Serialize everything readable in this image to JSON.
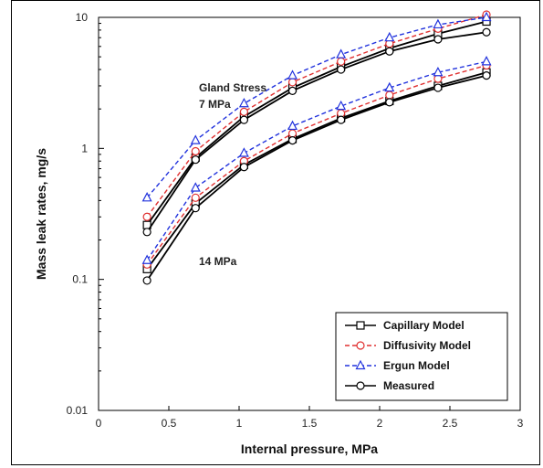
{
  "chart_data": {
    "type": "line",
    "xlabel": "Internal pressure, MPa",
    "ylabel": "Mass leak rates, mg/s",
    "xlim": [
      0,
      3
    ],
    "ylim": [
      0.01,
      10
    ],
    "yscale": "log",
    "xticks": [
      "0",
      "0.5",
      "1",
      "1.5",
      "2",
      "2.5",
      "3"
    ],
    "yticks": [
      "0.01",
      "0.1",
      "1",
      "10"
    ],
    "grid": false,
    "legend_position": "bottom-right",
    "annotations": [
      {
        "text": "Gland Stress",
        "group": "7"
      },
      {
        "text": "7 MPa",
        "group": "7"
      },
      {
        "text": "14 MPa",
        "group": "14"
      }
    ],
    "x": [
      0.345,
      0.69,
      1.035,
      1.38,
      1.725,
      2.07,
      2.415,
      2.76
    ],
    "series": [
      {
        "name": "Capillary Model",
        "group": "7",
        "color": "#000000",
        "dash": "solid",
        "marker": "square",
        "values": [
          0.26,
          0.85,
          1.75,
          2.9,
          4.2,
          5.8,
          7.5,
          9.3
        ]
      },
      {
        "name": "Diffusivity Model",
        "group": "7",
        "color": "#e03030",
        "dash": "dash",
        "marker": "circle",
        "values": [
          0.3,
          0.95,
          1.9,
          3.2,
          4.6,
          6.3,
          8.2,
          10.5
        ]
      },
      {
        "name": "Ergun Model",
        "group": "7",
        "color": "#2233dd",
        "dash": "dash",
        "marker": "triangle",
        "values": [
          0.42,
          1.15,
          2.2,
          3.6,
          5.2,
          7.0,
          8.8,
          10.0
        ]
      },
      {
        "name": "Measured",
        "group": "7",
        "color": "#000000",
        "dash": "solid",
        "marker": "circle",
        "values": [
          0.23,
          0.82,
          1.65,
          2.75,
          4.0,
          5.5,
          6.8,
          7.7
        ]
      },
      {
        "name": "Capillary Model",
        "group": "14",
        "color": "#000000",
        "dash": "solid",
        "marker": "square",
        "values": [
          0.12,
          0.38,
          0.75,
          1.18,
          1.7,
          2.3,
          3.0,
          3.8
        ]
      },
      {
        "name": "Diffusivity Model",
        "group": "14",
        "color": "#e03030",
        "dash": "dash",
        "marker": "circle",
        "values": [
          0.13,
          0.42,
          0.8,
          1.3,
          1.85,
          2.55,
          3.4,
          4.3
        ]
      },
      {
        "name": "Ergun Model",
        "group": "14",
        "color": "#2233dd",
        "dash": "dash",
        "marker": "triangle",
        "values": [
          0.14,
          0.5,
          0.92,
          1.48,
          2.1,
          2.9,
          3.8,
          4.6
        ]
      },
      {
        "name": "Measured",
        "group": "14",
        "color": "#000000",
        "dash": "solid",
        "marker": "circle",
        "values": [
          0.098,
          0.35,
          0.72,
          1.15,
          1.65,
          2.25,
          2.9,
          3.6
        ]
      }
    ],
    "legend": [
      {
        "label": "Capillary Model",
        "color": "#000000",
        "dash": "solid",
        "marker": "square"
      },
      {
        "label": "Diffusivity Model",
        "color": "#e03030",
        "dash": "dash",
        "marker": "circle"
      },
      {
        "label": "Ergun Model",
        "color": "#2233dd",
        "dash": "dash",
        "marker": "triangle"
      },
      {
        "label": "Measured",
        "color": "#000000",
        "dash": "solid",
        "marker": "circle"
      }
    ]
  }
}
